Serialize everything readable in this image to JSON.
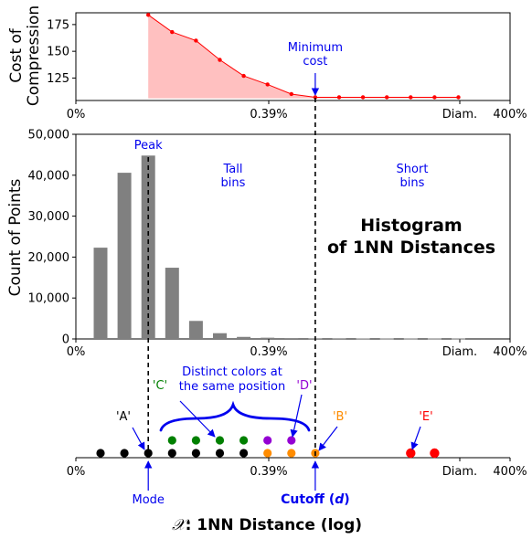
{
  "chart_data": [
    {
      "type": "area",
      "ylabel": "Cost of\nCompression",
      "xtick_labels": [
        "0%",
        "0.39%",
        "Diam.",
        "400%"
      ],
      "ylim": [
        104,
        186
      ],
      "yticks": [
        125,
        150,
        175
      ],
      "x_slots": [
        3,
        4,
        5,
        6,
        7,
        8,
        9,
        10,
        11,
        12,
        13,
        14,
        15,
        16
      ],
      "values": [
        184,
        168,
        160,
        142,
        127,
        119,
        110,
        107,
        107,
        107,
        107,
        107,
        107,
        107
      ],
      "color": "#ff0000",
      "annotation": "Minimum\ncost"
    },
    {
      "type": "bar",
      "ylabel": "Count of Points",
      "xtick_labels": [
        "0%",
        "0.39%",
        "Diam.",
        "400%"
      ],
      "ylim": [
        0,
        50000
      ],
      "yticks": [
        0,
        10000,
        20000,
        30000,
        40000,
        50000
      ],
      "ytick_labels": [
        "0",
        "10,000",
        "20,000",
        "30,000",
        "40,000",
        "50,000"
      ],
      "x_slots": [
        1,
        2,
        3,
        4,
        5,
        6,
        7,
        8,
        9,
        10,
        11,
        12,
        13,
        14,
        15,
        16
      ],
      "values": [
        22300,
        40600,
        44800,
        17400,
        4400,
        1400,
        500,
        300,
        200,
        150,
        150,
        120,
        100,
        100,
        100,
        100
      ],
      "color": "#808080",
      "annotations": {
        "peak": "Peak",
        "tall": "Tall\nbins",
        "short": "Short\nbins",
        "title": "Histogram\nof 1NN Distances"
      }
    },
    {
      "type": "scatter",
      "xtick_labels": [
        "0%",
        "0.39%",
        "Diam.",
        "400%"
      ],
      "xlabel_symbol": "𝒳",
      "xlabel_rest": ": 1NN Distance (log)",
      "points": [
        {
          "x": 1,
          "row": 0,
          "color": "#000000"
        },
        {
          "x": 2,
          "row": 0,
          "color": "#000000"
        },
        {
          "x": 3,
          "row": 0,
          "color": "#000000"
        },
        {
          "x": 4,
          "row": 0,
          "color": "#000000"
        },
        {
          "x": 5,
          "row": 0,
          "color": "#000000"
        },
        {
          "x": 6,
          "row": 0,
          "color": "#000000"
        },
        {
          "x": 7,
          "row": 0,
          "color": "#000000"
        },
        {
          "x": 4,
          "row": 1,
          "color": "#008000"
        },
        {
          "x": 5,
          "row": 1,
          "color": "#008000"
        },
        {
          "x": 6,
          "row": 1,
          "color": "#008000"
        },
        {
          "x": 7,
          "row": 1,
          "color": "#008000"
        },
        {
          "x": 8,
          "row": 1,
          "color": "#9400d3"
        },
        {
          "x": 9,
          "row": 1,
          "color": "#9400d3"
        },
        {
          "x": 8,
          "row": 0,
          "color": "#ff8c00"
        },
        {
          "x": 9,
          "row": 0,
          "color": "#ff8c00"
        },
        {
          "x": 10,
          "row": 0,
          "color": "#ff8c00"
        },
        {
          "x": 14,
          "row": 0,
          "color": "#ff0000"
        },
        {
          "x": 15,
          "row": 0,
          "color": "#ff0000"
        }
      ],
      "labels": [
        {
          "text": "'A'",
          "color": "#000000"
        },
        {
          "text": "'C'",
          "color": "#008000"
        },
        {
          "text": "'D'",
          "color": "#9400d3"
        },
        {
          "text": "'B'",
          "color": "#ff8c00"
        },
        {
          "text": "'E'",
          "color": "#ff0000"
        }
      ],
      "annotations": {
        "distinct": "Distinct colors at\nthe same position",
        "mode": "Mode",
        "cutoff_text": "Cutoff (",
        "cutoff_var": "d",
        "cutoff_close": ")"
      }
    }
  ],
  "colors": {
    "annotation_blue": "#0000ee"
  }
}
